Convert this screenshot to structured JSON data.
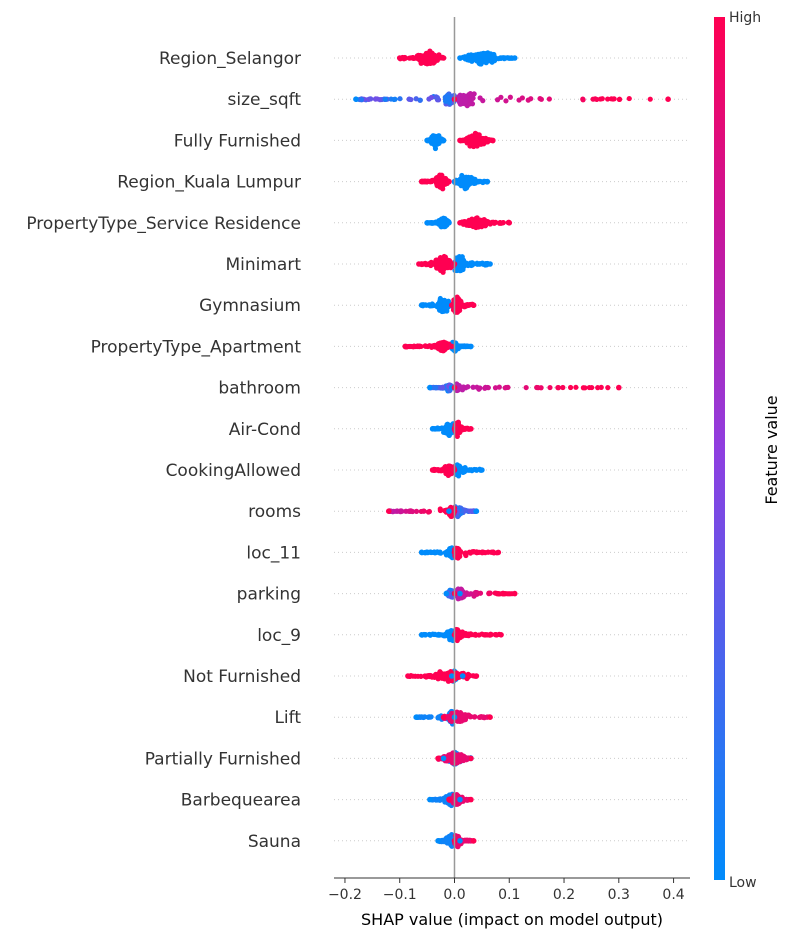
{
  "chart_data": {
    "type": "scatter",
    "subtype": "shap-beeswarm-summary",
    "xlabel": "SHAP value (impact on model output)",
    "xlim": [
      -0.22,
      0.43
    ],
    "xticks": [
      -0.2,
      -0.1,
      0.0,
      0.1,
      0.2,
      0.3,
      0.4
    ],
    "xtick_labels": [
      "−0.2",
      "−0.1",
      "0.0",
      "0.1",
      "0.2",
      "0.3",
      "0.4"
    ],
    "colorbar": {
      "title": "Feature value",
      "high_label": "High",
      "low_label": "Low",
      "low_color": "#008bfb",
      "high_color": "#ff0052"
    },
    "grid": "horizontal dotted per feature",
    "features": [
      {
        "name": "Region_Selangor",
        "low_range": [
          0.01,
          0.11
        ],
        "high_range": [
          -0.1,
          -0.02
        ],
        "low_peak": 0.05,
        "high_peak": -0.05,
        "spread": 12,
        "mode": "binary"
      },
      {
        "name": "size_sqft",
        "low_range": [
          -0.18,
          0.0
        ],
        "high_range": [
          0.0,
          0.39
        ],
        "low_peak": -0.01,
        "high_peak": 0.02,
        "spread": 9,
        "mode": "continuous"
      },
      {
        "name": "Fully Furnished",
        "low_range": [
          -0.05,
          -0.02
        ],
        "high_range": [
          0.01,
          0.07
        ],
        "low_peak": -0.035,
        "high_peak": 0.04,
        "spread": 13,
        "mode": "binary"
      },
      {
        "name": "Region_Kuala Lumpur",
        "low_range": [
          0.0,
          0.06
        ],
        "high_range": [
          -0.06,
          -0.01
        ],
        "low_peak": 0.02,
        "high_peak": -0.025,
        "spread": 12,
        "mode": "binary"
      },
      {
        "name": "PropertyType_Service Residence",
        "low_range": [
          -0.05,
          -0.01
        ],
        "high_range": [
          0.01,
          0.1
        ],
        "low_peak": -0.02,
        "high_peak": 0.04,
        "spread": 9,
        "mode": "binary"
      },
      {
        "name": "Minimart",
        "low_range": [
          0.0,
          0.065
        ],
        "high_range": [
          -0.065,
          0.0
        ],
        "low_peak": 0.01,
        "high_peak": -0.02,
        "spread": 14,
        "mode": "binary"
      },
      {
        "name": "Gymnasium",
        "low_range": [
          -0.06,
          -0.005
        ],
        "high_range": [
          -0.005,
          0.035
        ],
        "low_peak": -0.02,
        "high_peak": 0.005,
        "spread": 13,
        "mode": "binary"
      },
      {
        "name": "PropertyType_Apartment",
        "low_range": [
          -0.005,
          0.03
        ],
        "high_range": [
          -0.09,
          -0.005
        ],
        "low_peak": 0.0,
        "high_peak": -0.02,
        "spread": 8,
        "mode": "binary"
      },
      {
        "name": "bathroom",
        "low_range": [
          -0.045,
          -0.005
        ],
        "high_range": [
          0.0,
          0.3
        ],
        "low_peak": -0.01,
        "high_peak": 0.005,
        "spread": 5,
        "mode": "continuous"
      },
      {
        "name": "Air-Cond",
        "low_range": [
          -0.04,
          0.0
        ],
        "high_range": [
          0.0,
          0.03
        ],
        "low_peak": -0.01,
        "high_peak": 0.005,
        "spread": 11,
        "mode": "binary"
      },
      {
        "name": "CookingAllowed",
        "low_range": [
          0.0,
          0.05
        ],
        "high_range": [
          -0.04,
          0.0
        ],
        "low_peak": 0.005,
        "high_peak": -0.01,
        "spread": 10,
        "mode": "binary"
      },
      {
        "name": "rooms",
        "low_range": [
          -0.01,
          0.04
        ],
        "high_range": [
          -0.12,
          0.0
        ],
        "low_peak": 0.005,
        "high_peak": -0.005,
        "spread": 7,
        "mode": "continuous"
      },
      {
        "name": "loc_11",
        "low_range": [
          -0.06,
          0.0
        ],
        "high_range": [
          0.0,
          0.08
        ],
        "low_peak": -0.005,
        "high_peak": 0.005,
        "spread": 9,
        "mode": "binary"
      },
      {
        "name": "parking",
        "low_range": [
          -0.015,
          0.01
        ],
        "high_range": [
          0.0,
          0.11
        ],
        "low_peak": -0.005,
        "high_peak": 0.01,
        "spread": 8,
        "mode": "continuous"
      },
      {
        "name": "loc_9",
        "low_range": [
          -0.06,
          0.0
        ],
        "high_range": [
          0.0,
          0.085
        ],
        "low_peak": -0.005,
        "high_peak": 0.005,
        "spread": 9,
        "mode": "binary"
      },
      {
        "name": "Not Furnished",
        "low_range": [
          -0.005,
          0.015
        ],
        "high_range": [
          -0.085,
          0.04
        ],
        "low_peak": 0.0,
        "high_peak": -0.01,
        "spread": 9,
        "mode": "binary"
      },
      {
        "name": "Lift",
        "low_range": [
          -0.07,
          0.0
        ],
        "high_range": [
          -0.02,
          0.065
        ],
        "low_peak": -0.005,
        "high_peak": 0.005,
        "spread": 10,
        "mode": "mixed"
      },
      {
        "name": "Partially Furnished",
        "low_range": [
          -0.02,
          0.03
        ],
        "high_range": [
          -0.03,
          0.03
        ],
        "low_peak": 0.0,
        "high_peak": 0.0,
        "spread": 11,
        "mode": "mixed"
      },
      {
        "name": "Barbequearea",
        "low_range": [
          -0.045,
          0.01
        ],
        "high_range": [
          -0.01,
          0.03
        ],
        "low_peak": -0.005,
        "high_peak": 0.005,
        "spread": 10,
        "mode": "mixed"
      },
      {
        "name": "Sauna",
        "low_range": [
          -0.03,
          0.01
        ],
        "high_range": [
          0.0,
          0.035
        ],
        "low_peak": -0.005,
        "high_peak": 0.005,
        "spread": 10,
        "mode": "mixed"
      }
    ]
  }
}
